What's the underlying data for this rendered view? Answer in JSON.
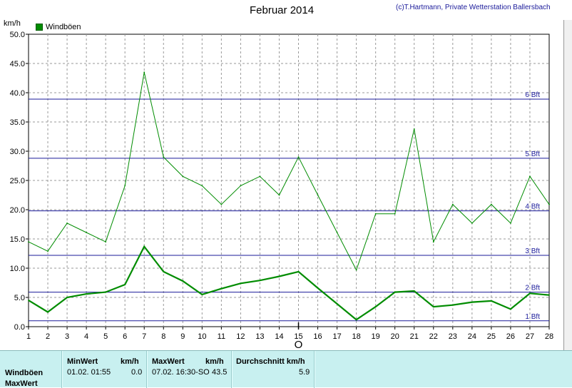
{
  "header": {
    "title": "Februar 2014",
    "credit": "(c)T.Hartmann, Private Wetterstation Ballersbach",
    "unit": "km/h"
  },
  "chart_data": {
    "type": "line",
    "title": "Februar 2014",
    "ylabel": "km/h",
    "ylim": [
      0,
      50
    ],
    "xlim": [
      1,
      28
    ],
    "grid": true,
    "legend_position": "top-left",
    "yticks": [
      "0.0",
      "5.0",
      "10.0",
      "15.0",
      "20.0",
      "25.0",
      "30.0",
      "35.0",
      "40.0",
      "45.0",
      "50.0"
    ],
    "xticks": [
      "1",
      "2",
      "3",
      "4",
      "5",
      "6",
      "7",
      "8",
      "9",
      "10",
      "11",
      "12",
      "13",
      "14",
      "15",
      "16",
      "17",
      "18",
      "19",
      "20",
      "21",
      "22",
      "23",
      "24",
      "25",
      "26",
      "27",
      "28"
    ],
    "x": [
      1,
      2,
      3,
      4,
      5,
      6,
      7,
      8,
      9,
      10,
      11,
      12,
      13,
      14,
      15,
      16,
      17,
      18,
      19,
      20,
      21,
      22,
      23,
      24,
      25,
      26,
      27,
      28
    ],
    "series": [
      {
        "name": "Windböen",
        "color": "#008c00",
        "values": [
          14.5,
          12.9,
          17.7,
          16.1,
          14.5,
          24.1,
          43.5,
          29.0,
          25.7,
          24.1,
          20.9,
          24.1,
          25.7,
          22.5,
          29.0,
          22.5,
          16.1,
          9.7,
          19.3,
          19.3,
          33.8,
          14.5,
          20.9,
          17.7,
          20.9,
          17.7,
          25.7,
          20.9
        ]
      },
      {
        "color": "#008c00",
        "values": [
          4.5,
          2.5,
          5.0,
          5.6,
          5.9,
          7.2,
          13.7,
          9.4,
          7.8,
          5.5,
          6.5,
          7.4,
          7.9,
          8.6,
          9.4,
          6.6,
          3.9,
          1.2,
          3.4,
          5.9,
          6.1,
          3.4,
          3.7,
          4.2,
          4.4,
          3.0,
          5.7,
          5.4
        ]
      }
    ],
    "reference_lines": [
      {
        "label": "1 Bft",
        "value": 1.0
      },
      {
        "label": "2 Bft",
        "value": 5.9
      },
      {
        "label": "3 Bft",
        "value": 12.2
      },
      {
        "label": "4 Bft",
        "value": 19.8
      },
      {
        "label": "5 Bft",
        "value": 28.8
      },
      {
        "label": "6 Bft",
        "value": 38.9
      }
    ],
    "reference_color": "#1a1a9a",
    "marker": {
      "label": "O",
      "x": 15
    }
  },
  "stats": {
    "col_minwert": "MinWert",
    "col_kmh1": "km/h",
    "col_maxwert": "MaxWert",
    "col_kmh2": "km/h",
    "col_avg": "Durchschnitt km/h",
    "row1_label": "Windböen",
    "row2_label": "MaxWert",
    "min_time": "01.02.  01:55",
    "min_value": "0.0",
    "max_time": "07.02.  16:30-SO",
    "max_value": "43.5",
    "avg_value": "5.9"
  }
}
